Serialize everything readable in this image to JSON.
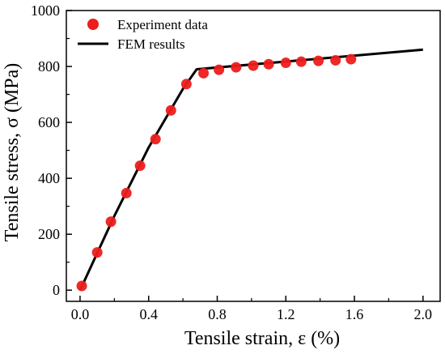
{
  "chart_data": {
    "type": "scatter",
    "xlabel": "Tensile strain, ε (%)",
    "ylabel": "Tensile stress, σ (MPa)",
    "xlim": [
      -0.08,
      2.1
    ],
    "ylim": [
      -40,
      1000
    ],
    "xticks": [
      "0.0",
      "0.4",
      "0.8",
      "1.2",
      "1.6",
      "2.0"
    ],
    "yticks": [
      "0",
      "200",
      "400",
      "600",
      "800",
      "1000"
    ],
    "grid": false,
    "legend_position": "top-left",
    "series": [
      {
        "name": "Experiment data",
        "kind": "scatter",
        "color": "#ee1c1c",
        "x": [
          0.01,
          0.1,
          0.18,
          0.27,
          0.35,
          0.44,
          0.53,
          0.62,
          0.72,
          0.81,
          0.91,
          1.01,
          1.1,
          1.2,
          1.29,
          1.39,
          1.49,
          1.58
        ],
        "y": [
          15,
          135,
          245,
          347,
          445,
          540,
          643,
          737,
          776,
          788,
          797,
          803,
          808,
          813,
          817,
          820,
          822,
          826
        ]
      },
      {
        "name": "FEM results",
        "kind": "line",
        "color": "#000000",
        "x": [
          0.0,
          0.2,
          0.4,
          0.6,
          0.68,
          2.0
        ],
        "y": [
          0,
          265,
          510,
          720,
          790,
          860
        ]
      }
    ]
  }
}
